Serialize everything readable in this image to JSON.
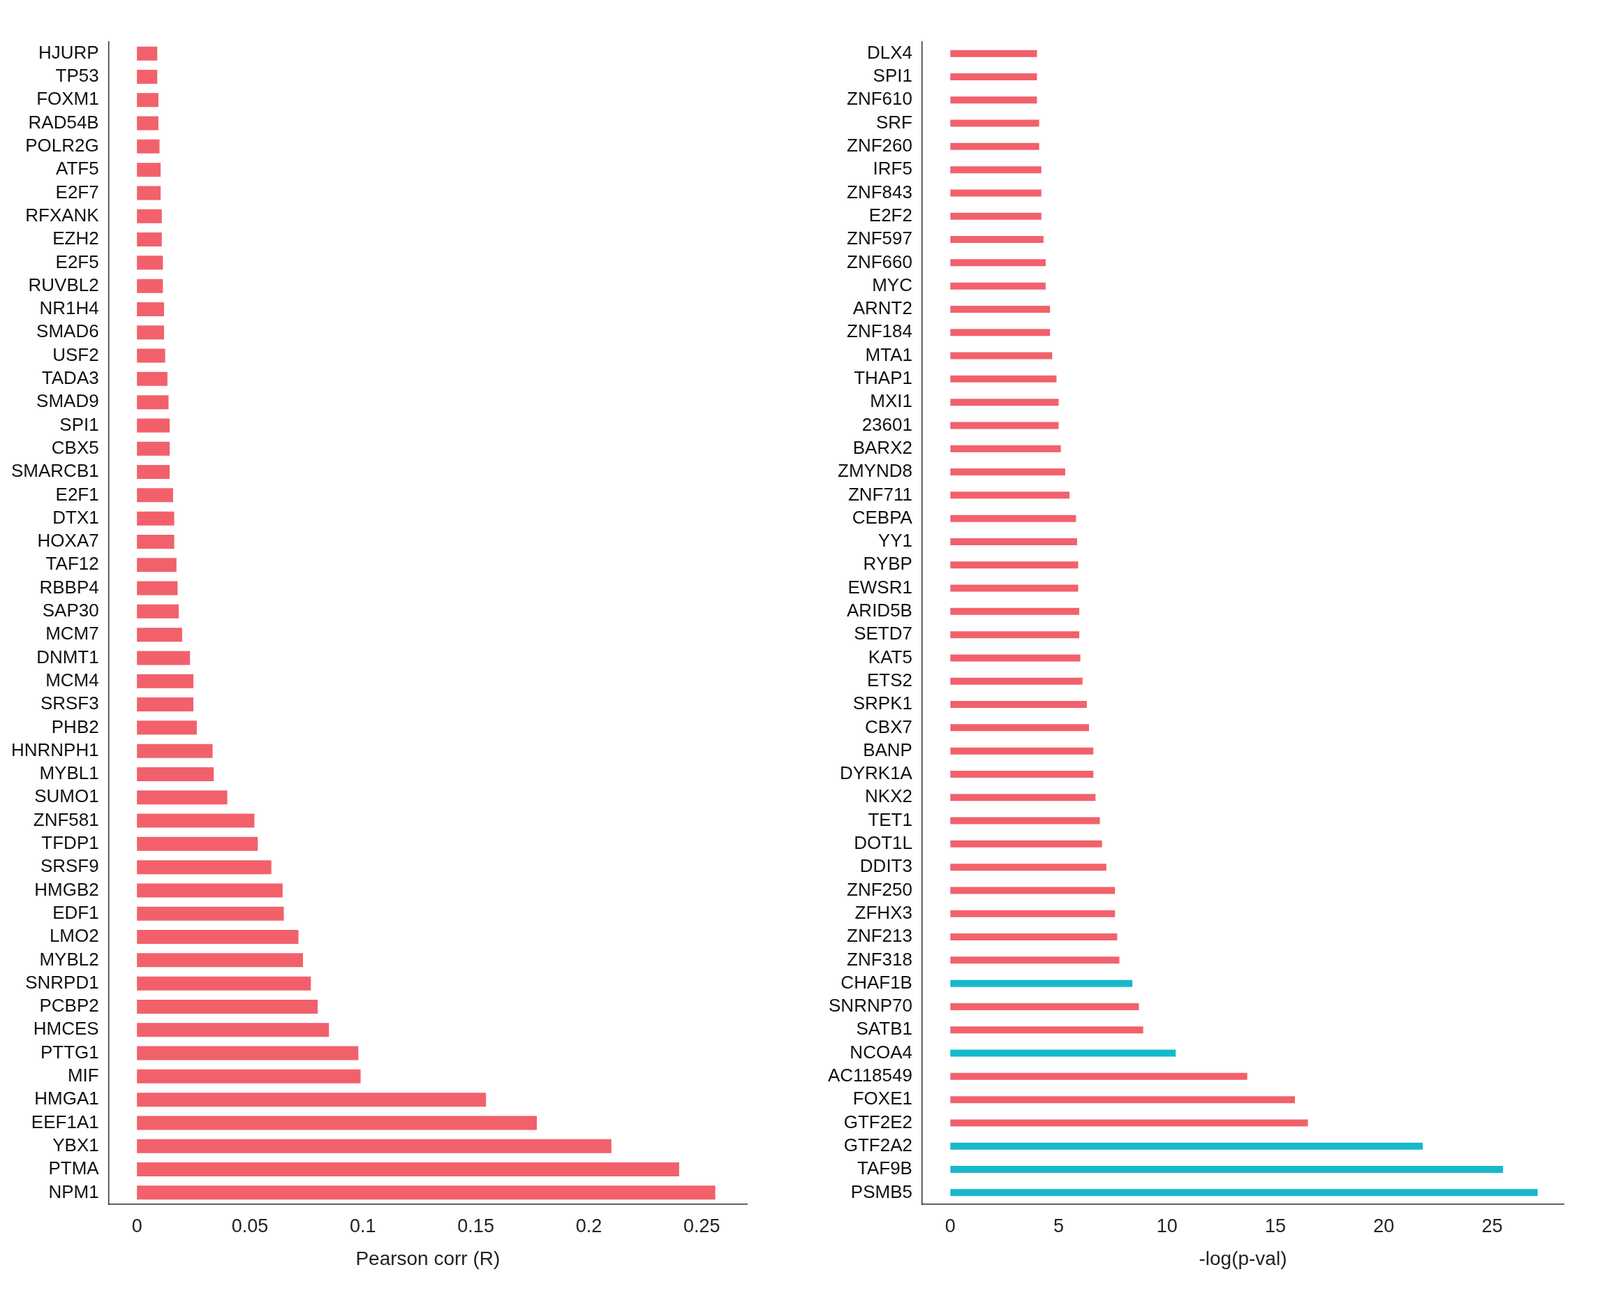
{
  "chart_data": [
    {
      "type": "bar",
      "orientation": "horizontal",
      "x_label": "Pearson corr (R)",
      "color": "#f2616b",
      "categories": [
        "HJURP",
        "TP53",
        "FOXM1",
        "RAD54B",
        "POLR2G",
        "ATF5",
        "E2F7",
        "RFXANK",
        "EZH2",
        "E2F5",
        "RUVBL2",
        "NR1H4",
        "SMAD6",
        "USF2",
        "TADA3",
        "SMAD9",
        "SPI1",
        "CBX5",
        "SMARCB1",
        "E2F1",
        "DTX1",
        "HOXA7",
        "TAF12",
        "RBBP4",
        "SAP30",
        "MCM7",
        "DNMT1",
        "MCM4",
        "SRSF3",
        "PHB2",
        "HNRNPH1",
        "MYBL1",
        "SUMO1",
        "ZNF581",
        "TFDP1",
        "SRSF9",
        "HMGB2",
        "EDF1",
        "LMO2",
        "MYBL2",
        "SNRPD1",
        "PCBP2",
        "HMCES",
        "PTTG1",
        "MIF",
        "HMGA1",
        "EEF1A1",
        "YBX1",
        "PTMA",
        "NPM1"
      ],
      "values": [
        0.009,
        0.009,
        0.0095,
        0.0095,
        0.01,
        0.0105,
        0.0105,
        0.011,
        0.011,
        0.0115,
        0.0115,
        0.012,
        0.012,
        0.0125,
        0.0135,
        0.014,
        0.0145,
        0.0145,
        0.0145,
        0.016,
        0.0165,
        0.0165,
        0.0175,
        0.018,
        0.0185,
        0.02,
        0.0235,
        0.025,
        0.025,
        0.0265,
        0.0335,
        0.034,
        0.04,
        0.052,
        0.0535,
        0.0595,
        0.0645,
        0.065,
        0.0715,
        0.0735,
        0.077,
        0.08,
        0.085,
        0.098,
        0.099,
        0.1545,
        0.177,
        0.21,
        0.24,
        0.256
      ],
      "xlim": [
        -0.0125,
        0.27
      ],
      "xticks": [
        0,
        0.05,
        0.1,
        0.15,
        0.2,
        0.25
      ],
      "grid": false
    },
    {
      "type": "bar",
      "orientation": "horizontal",
      "x_label": "-log(p-val)",
      "categories": [
        "DLX4",
        "SPI1",
        "ZNF610",
        "SRF",
        "ZNF260",
        "IRF5",
        "ZNF843",
        "E2F2",
        "ZNF597",
        "ZNF660",
        "MYC",
        "ARNT2",
        "ZNF184",
        "MTA1",
        "THAP1",
        "MXI1",
        "23601",
        "BARX2",
        "ZMYND8",
        "ZNF711",
        "CEBPA",
        "YY1",
        "RYBP",
        "EWSR1",
        "ARID5B",
        "SETD7",
        "KAT5",
        "ETS2",
        "SRPK1",
        "CBX7",
        "BANP",
        "DYRK1A",
        "NKX2",
        "TET1",
        "DOT1L",
        "DDIT3",
        "ZNF250",
        "ZFHX3",
        "ZNF213",
        "ZNF318",
        "CHAF1B",
        "SNRNP70",
        "SATB1",
        "NCOA4",
        "AC118549",
        "FOXE1",
        "GTF2E2",
        "GTF2A2",
        "TAF9B",
        "PSMB5"
      ],
      "values": [
        4.0,
        4.0,
        4.0,
        4.1,
        4.1,
        4.2,
        4.2,
        4.2,
        4.3,
        4.4,
        4.4,
        4.6,
        4.6,
        4.7,
        4.9,
        5.0,
        5.0,
        5.1,
        5.3,
        5.5,
        5.8,
        5.85,
        5.9,
        5.9,
        5.95,
        5.95,
        6.0,
        6.1,
        6.3,
        6.4,
        6.6,
        6.6,
        6.7,
        6.9,
        7.0,
        7.2,
        7.6,
        7.6,
        7.7,
        7.8,
        8.4,
        8.7,
        8.9,
        10.4,
        13.7,
        15.9,
        16.5,
        21.8,
        25.5,
        27.1
      ],
      "colors": [
        "#f2616b",
        "#f2616b",
        "#f2616b",
        "#f2616b",
        "#f2616b",
        "#f2616b",
        "#f2616b",
        "#f2616b",
        "#f2616b",
        "#f2616b",
        "#f2616b",
        "#f2616b",
        "#f2616b",
        "#f2616b",
        "#f2616b",
        "#f2616b",
        "#f2616b",
        "#f2616b",
        "#f2616b",
        "#f2616b",
        "#f2616b",
        "#f2616b",
        "#f2616b",
        "#f2616b",
        "#f2616b",
        "#f2616b",
        "#f2616b",
        "#f2616b",
        "#f2616b",
        "#f2616b",
        "#f2616b",
        "#f2616b",
        "#f2616b",
        "#f2616b",
        "#f2616b",
        "#f2616b",
        "#f2616b",
        "#f2616b",
        "#f2616b",
        "#f2616b",
        "#17b8cc",
        "#f2616b",
        "#f2616b",
        "#17b8cc",
        "#f2616b",
        "#f2616b",
        "#f2616b",
        "#17b8cc",
        "#17b8cc",
        "#17b8cc"
      ],
      "xlim": [
        -1.3,
        28.3
      ],
      "xticks": [
        0,
        5,
        10,
        15,
        20,
        25
      ],
      "grid": false
    }
  ]
}
